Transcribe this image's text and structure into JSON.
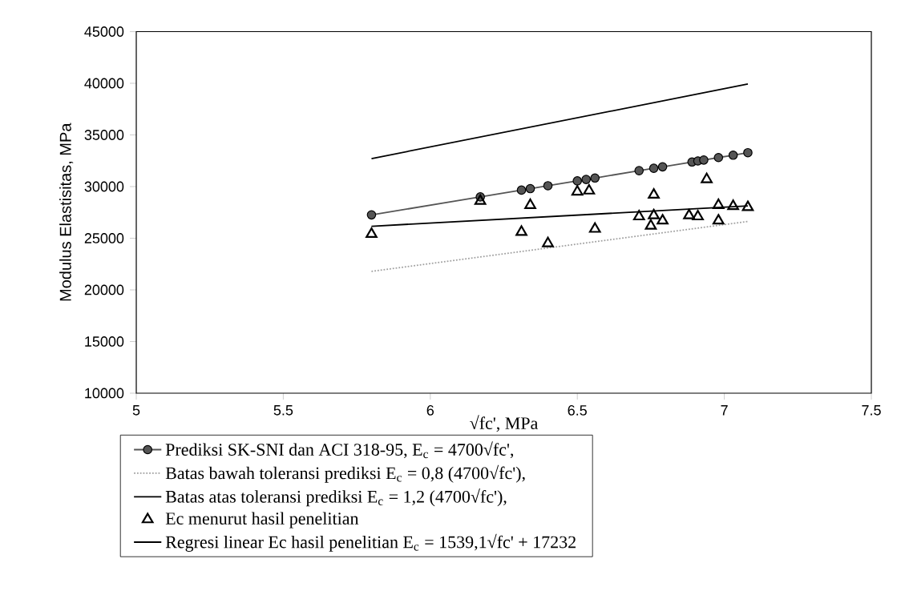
{
  "chart_data": {
    "type": "line",
    "xlabel": "√fc', MPa",
    "ylabel": "Modulus Elastisitas, MPa",
    "xlim": [
      5,
      7.5
    ],
    "xticks": [
      5,
      5.5,
      6,
      6.5,
      7,
      7.5
    ],
    "ylim": [
      10000,
      45000
    ],
    "yticks": [
      10000,
      15000,
      20000,
      25000,
      30000,
      35000,
      40000,
      45000
    ],
    "grid": false,
    "legend": "bottom",
    "series": [
      {
        "name": "Prediksi SK-SNI dan ACI 318-95, E$_{c}$ = 4700√fc',",
        "color": "#555555",
        "marker": "circle",
        "line_style": "solid",
        "x": [
          5.8,
          6.17,
          6.31,
          6.34,
          6.4,
          6.5,
          6.53,
          6.56,
          6.71,
          6.76,
          6.79,
          6.89,
          6.91,
          6.93,
          6.98,
          7.03,
          7.08
        ],
        "values": [
          27260,
          29000,
          29660,
          29800,
          30080,
          30550,
          30690,
          30830,
          31540,
          31770,
          31910,
          32380,
          32480,
          32570,
          32810,
          33040,
          33280
        ]
      },
      {
        "name": "Batas bawah toleransi prediksi E$_{c}$ = 0,8 (4700√fc'),",
        "color": "#a0a0a0",
        "marker": "none",
        "line_style": "dotted",
        "x": [
          5.8,
          7.08
        ],
        "values": [
          21800,
          26620
        ]
      },
      {
        "name": "Batas atas toleransi prediksi E$_{c}$ = 1,2 (4700√fc'),",
        "color": "#000000",
        "marker": "none",
        "line_style": "solid",
        "x": [
          5.8,
          7.08
        ],
        "values": [
          32710,
          39930
        ]
      },
      {
        "name": "Ec menurut hasil penelitian",
        "type": "scatter",
        "color": "#000000",
        "marker": "triangle",
        "x": [
          5.8,
          6.17,
          6.31,
          6.34,
          6.4,
          6.5,
          6.54,
          6.56,
          6.71,
          6.76,
          6.76,
          6.75,
          6.79,
          6.88,
          6.91,
          6.94,
          6.98,
          6.98,
          7.03,
          7.08
        ],
        "values": [
          25400,
          28600,
          25600,
          28200,
          24500,
          29500,
          29600,
          25900,
          27100,
          29200,
          27200,
          26200,
          26700,
          27200,
          27100,
          30700,
          28200,
          26700,
          28100,
          28000
        ]
      },
      {
        "name": "Regresi linear Ec hasil penelitian E$_{c}$ = 1539,1√fc' + 17232",
        "color": "#000000",
        "marker": "none",
        "line_style": "solid",
        "x": [
          5.8,
          7.08
        ],
        "values": [
          26160,
          28130
        ]
      }
    ]
  }
}
